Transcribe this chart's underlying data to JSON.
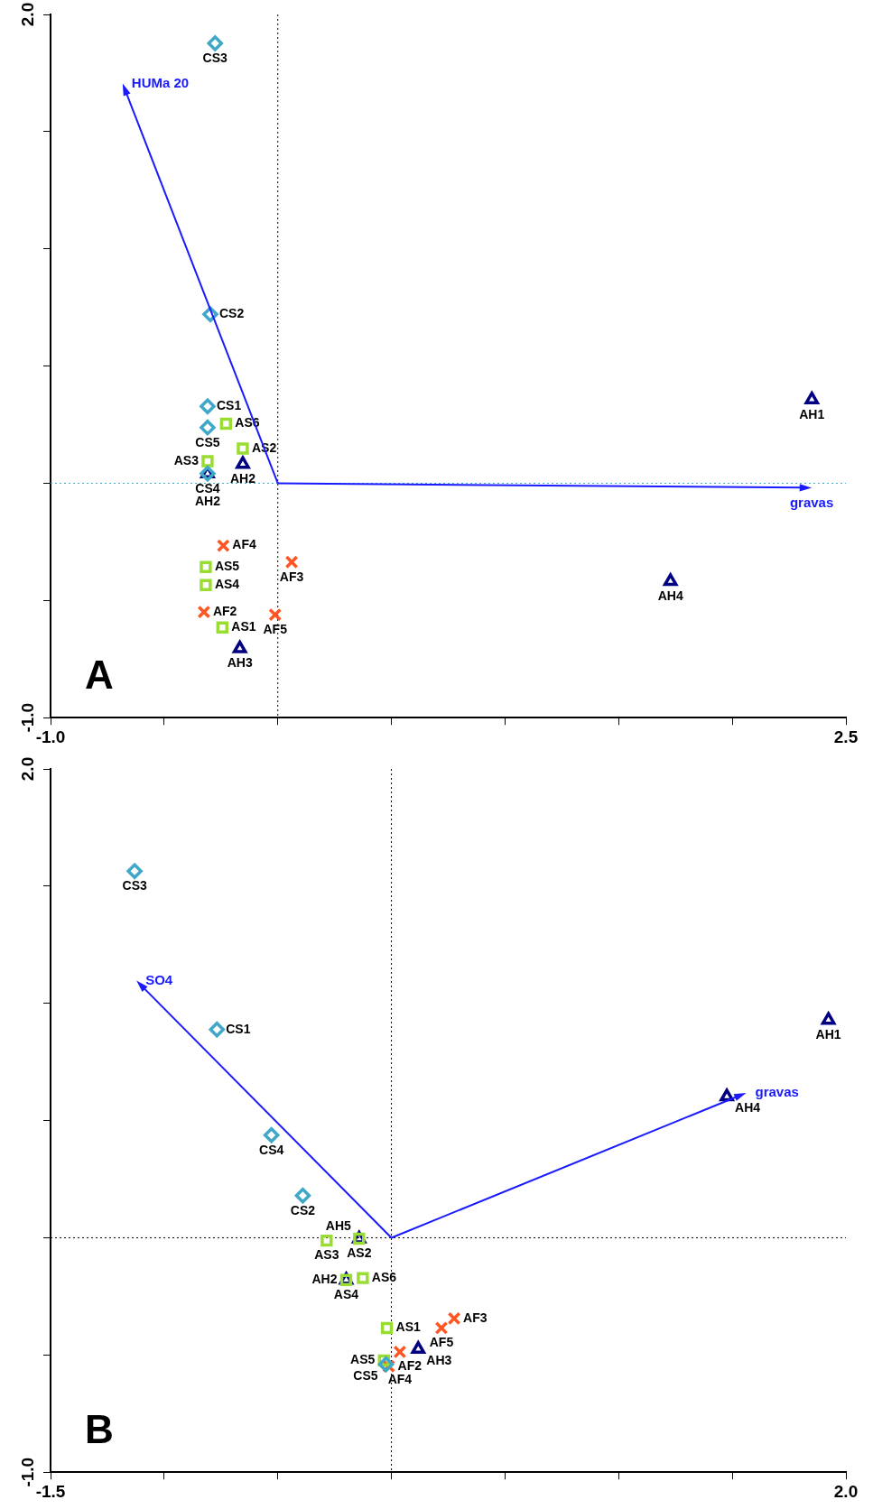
{
  "chart_data": [
    {
      "type": "scatter",
      "legend": false,
      "xlim": [
        -1.0,
        2.5
      ],
      "ylim": [
        -1.0,
        2.0
      ],
      "xticks": [
        {
          "value": -1.0,
          "label": "-1.0"
        },
        {
          "value": -0.5,
          "label": null
        },
        {
          "value": 0,
          "label": null
        },
        {
          "value": 0.5,
          "label": null
        },
        {
          "value": 1.0,
          "label": null
        },
        {
          "value": 1.5,
          "label": null
        },
        {
          "value": 2.0,
          "label": null
        },
        2.5
      ],
      "yticks": [
        {
          "value": -1.0,
          "label": "-1.0"
        },
        {
          "value": -0.5,
          "label": null
        },
        {
          "value": 0,
          "label": null
        },
        {
          "value": 0.5,
          "label": null
        },
        {
          "value": 1.0,
          "label": null
        },
        {
          "value": 1.5,
          "label": null
        },
        {
          "value": 2.0,
          "label": "2.0"
        }
      ],
      "ref_lines": [
        {
          "axis": "x",
          "value": 0,
          "color": "#000000",
          "line_style": "dotted"
        },
        {
          "axis": "y",
          "value": 0,
          "color": "#3fa8c8",
          "line_style": "dotted"
        }
      ],
      "annotations": [
        "A",
        "HUMa 20",
        "gravas"
      ],
      "series": [
        {
          "marker": "diamond",
          "color": "#3fa8c8",
          "x": [
            -0.276,
            -0.297,
            -0.309,
            -0.309,
            -0.309
          ],
          "values": [
            1.877,
            0.721,
            0.328,
            0.238,
            0.041
          ],
          "value_labels": [
            "CS3",
            "CS2",
            "CS1",
            "CS5",
            "CS4"
          ]
        },
        {
          "marker": "square",
          "color": "#99dd33",
          "x": [
            -0.228,
            -0.154,
            -0.309,
            -0.317,
            -0.317,
            -0.244
          ],
          "values": [
            0.254,
            0.148,
            0.094,
            -0.357,
            -0.434,
            -0.615
          ],
          "value_labels": [
            "AS6",
            "AS2",
            "AS3",
            "AS5",
            "AS4",
            "AS1"
          ]
        },
        {
          "marker": "cross",
          "color": "#ff5522",
          "x": [
            -0.24,
            0.061,
            -0.325,
            -0.012
          ],
          "values": [
            -0.266,
            -0.336,
            -0.549,
            -0.561
          ],
          "value_labels": [
            "AF4",
            "AF3",
            "AF2",
            "AF5"
          ]
        },
        {
          "marker": "triangle",
          "color": "#000080",
          "x": [
            -0.154,
            -0.309,
            -0.167,
            1.728,
            2.35
          ],
          "values": [
            0.082,
            0.041,
            -0.705,
            -0.418,
            0.357
          ],
          "value_labels": [
            "AH2",
            "AH2",
            "AH3",
            "AH4",
            "AH1"
          ]
        }
      ]
    },
    {
      "type": "scatter",
      "legend": false,
      "xlim": [
        -1.5,
        2.0
      ],
      "ylim": [
        -1.0,
        2.0
      ],
      "xticks": [
        -1.5,
        {
          "value": -1.0,
          "label": null
        },
        {
          "value": -0.5,
          "label": null
        },
        {
          "value": 0,
          "label": null
        },
        {
          "value": 0.5,
          "label": null
        },
        {
          "value": 1.0,
          "label": null
        },
        {
          "value": 1.5,
          "label": null
        },
        {
          "value": 2.0,
          "label": "2.0"
        }
      ],
      "yticks": [
        {
          "value": -1.0,
          "label": "-1.0"
        },
        {
          "value": -0.5,
          "label": null
        },
        {
          "value": 0,
          "label": null
        },
        {
          "value": 0.5,
          "label": null
        },
        {
          "value": 1.0,
          "label": null
        },
        {
          "value": 1.5,
          "label": null
        },
        {
          "value": 2.0,
          "label": "2.0"
        }
      ],
      "ref_lines": [
        {
          "axis": "x",
          "value": 0,
          "color": "#000000",
          "line_style": "dotted"
        },
        {
          "axis": "y",
          "value": 0,
          "color": "#000000",
          "line_style": "dotted"
        }
      ],
      "annotations": [
        "B",
        "SO4",
        "gravas"
      ],
      "series": [
        {
          "marker": "diamond",
          "color": "#3fa8c8",
          "x": [
            -1.13,
            -0.768,
            -0.528,
            -0.39,
            -0.024
          ],
          "values": [
            1.564,
            0.888,
            0.438,
            0.18,
            -0.54
          ],
          "value_labels": [
            "CS3",
            "CS1",
            "CS4",
            "CS2",
            "CS5"
          ]
        },
        {
          "marker": "square",
          "color": "#99dd33",
          "x": [
            -0.285,
            -0.142,
            -0.199,
            -0.126,
            -0.02,
            -0.033
          ],
          "values": [
            -0.012,
            -0.004,
            -0.18,
            -0.172,
            -0.385,
            -0.524
          ],
          "value_labels": [
            "AS3",
            "AS2",
            "AS4",
            "AS6",
            "AS1",
            "AS5"
          ]
        },
        {
          "marker": "cross",
          "color": "#ff5522",
          "x": [
            -0.012,
            0.037,
            0.22,
            0.276
          ],
          "values": [
            -0.548,
            -0.487,
            -0.385,
            -0.344
          ],
          "value_labels": [
            "AF2",
            "AF4",
            "AF5",
            "AF3"
          ]
        },
        {
          "marker": "triangle",
          "color": "#000080",
          "x": [
            -0.142,
            -0.199,
            0.118,
            1.476,
            1.923
          ],
          "values": [
            -0.004,
            -0.18,
            -0.475,
            0.602,
            0.929
          ],
          "value_labels": [
            "AH5",
            "AH2",
            "AH3",
            "AH4",
            "AH1"
          ]
        }
      ]
    }
  ]
}
